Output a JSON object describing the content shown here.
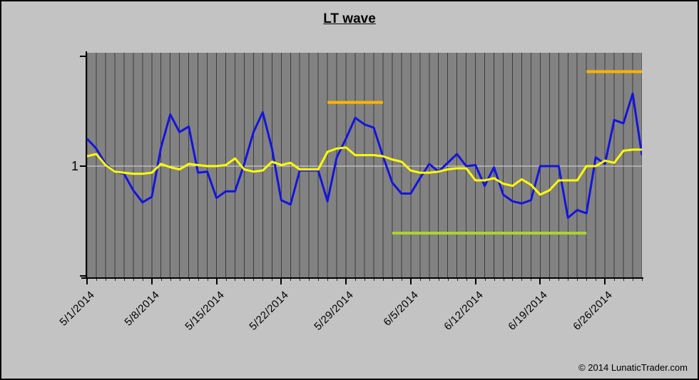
{
  "title": "LT wave",
  "copyright": "© 2014 LunaticTrader.com",
  "y_axis": {
    "tick_label": "1"
  },
  "colors": {
    "background": "#c3c3c3",
    "plot_background": "#828282",
    "gridline": "#3d3d3d",
    "unit_line": "#d9d9d9",
    "axis": "#000000",
    "text": "#000000"
  },
  "chart_data": {
    "type": "line",
    "title": "LT wave",
    "xlabel": "",
    "ylabel": "",
    "ylim": [
      0,
      2
    ],
    "y_ticks": [
      0,
      1,
      2
    ],
    "y_tick_labels_shown": [
      "1"
    ],
    "grid": "vertical-daily",
    "legend": "none",
    "x": [
      "5/1/2014",
      "5/2/2014",
      "5/3/2014",
      "5/4/2014",
      "5/5/2014",
      "5/6/2014",
      "5/7/2014",
      "5/8/2014",
      "5/9/2014",
      "5/10/2014",
      "5/11/2014",
      "5/12/2014",
      "5/13/2014",
      "5/14/2014",
      "5/15/2014",
      "5/16/2014",
      "5/17/2014",
      "5/18/2014",
      "5/19/2014",
      "5/20/2014",
      "5/21/2014",
      "5/22/2014",
      "5/23/2014",
      "5/24/2014",
      "5/25/2014",
      "5/26/2014",
      "5/27/2014",
      "5/28/2014",
      "5/29/2014",
      "5/30/2014",
      "5/31/2014",
      "6/1/2014",
      "6/2/2014",
      "6/3/2014",
      "6/4/2014",
      "6/5/2014",
      "6/6/2014",
      "6/7/2014",
      "6/8/2014",
      "6/9/2014",
      "6/10/2014",
      "6/11/2014",
      "6/12/2014",
      "6/13/2014",
      "6/14/2014",
      "6/15/2014",
      "6/16/2014",
      "6/17/2014",
      "6/18/2014",
      "6/19/2014",
      "6/20/2014",
      "6/21/2014",
      "6/22/2014",
      "6/23/2014",
      "6/24/2014",
      "6/25/2014",
      "6/26/2014",
      "6/27/2014",
      "6/28/2014",
      "6/29/2014",
      "6/30/2014"
    ],
    "x_tick_labels": [
      "5/1/2014",
      "5/8/2014",
      "5/15/2014",
      "5/22/2014",
      "5/29/2014",
      "6/5/2014",
      "6/12/2014",
      "6/19/2014",
      "6/26/2014"
    ],
    "x_tick_interval_days": 7,
    "series": [
      {
        "name": "lt-wave-daily",
        "color": "#1414dd",
        "width": 3,
        "values": [
          1.25,
          1.16,
          1.02,
          0.95,
          0.93,
          0.78,
          0.67,
          0.72,
          1.17,
          1.47,
          1.31,
          1.36,
          0.94,
          0.95,
          0.71,
          0.77,
          0.77,
          1.02,
          1.31,
          1.49,
          1.16,
          0.69,
          0.65,
          0.96,
          0.96,
          0.96,
          0.68,
          1.08,
          1.25,
          1.44,
          1.38,
          1.35,
          1.09,
          0.85,
          0.75,
          0.75,
          0.89,
          1.02,
          0.95,
          1.03,
          1.11,
          1.0,
          1.01,
          0.82,
          0.99,
          0.74,
          0.68,
          0.66,
          0.69,
          1.0,
          1.0,
          1.0,
          0.53,
          0.6,
          0.57,
          1.08,
          1.02,
          1.42,
          1.39,
          1.66,
          1.1
        ]
      },
      {
        "name": "lt-wave-average",
        "color": "#ffff00",
        "width": 3,
        "values": [
          1.09,
          1.11,
          1.01,
          0.95,
          0.94,
          0.93,
          0.93,
          0.94,
          1.02,
          0.99,
          0.97,
          1.02,
          1.01,
          1.0,
          1.0,
          1.01,
          1.07,
          0.97,
          0.95,
          0.96,
          1.04,
          1.01,
          1.03,
          0.97,
          0.97,
          0.97,
          1.13,
          1.16,
          1.17,
          1.1,
          1.1,
          1.1,
          1.09,
          1.06,
          1.04,
          0.96,
          0.94,
          0.94,
          0.95,
          0.97,
          0.98,
          0.98,
          0.87,
          0.87,
          0.89,
          0.84,
          0.82,
          0.88,
          0.83,
          0.74,
          0.78,
          0.87,
          0.87,
          0.87,
          1.0,
          1.0,
          1.05,
          1.03,
          1.14,
          1.15,
          1.15
        ]
      }
    ],
    "markers": [
      {
        "name": "orange-high-segment-1",
        "color": "#ffb400",
        "width": 4,
        "from_x": "5/27/2014",
        "to_x": "6/2/2014",
        "value": 1.58
      },
      {
        "name": "orange-high-segment-2",
        "color": "#ffb400",
        "width": 4,
        "from_x": "6/24/2014",
        "to_x": "6/30/2014",
        "value": 1.86
      },
      {
        "name": "green-low-segment",
        "color": "#a9d32c",
        "width": 4,
        "from_x": "6/3/2014",
        "to_x": "6/24/2014",
        "value": 0.39
      }
    ]
  }
}
